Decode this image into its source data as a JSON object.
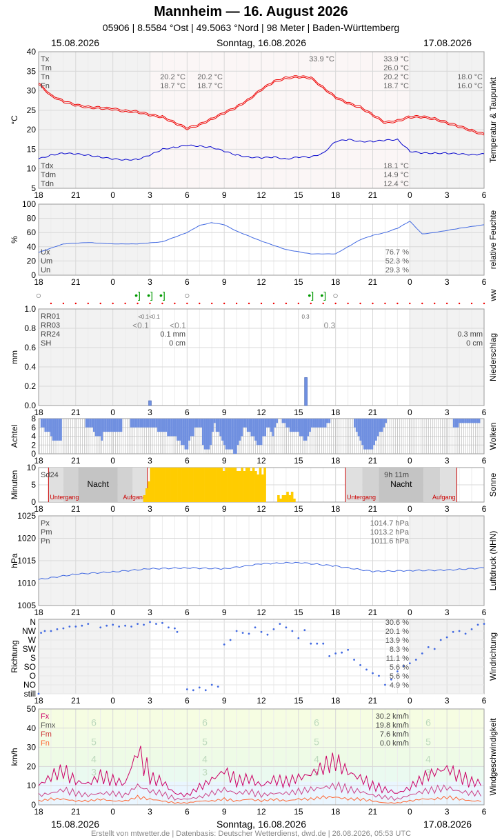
{
  "header": {
    "title": "Mannheim  —  16. August 2026",
    "station": "05906  |  8.5584 °Ost  |  49.5063 °Nord  |  98 Meter  |  Baden-Württemberg",
    "date_left": "15.08.2026",
    "date_center": "Sonntag, 16.08.2026",
    "date_right": "17.08.2026"
  },
  "footer": "Erstellt von mtwetter.de | Datenbasis: Deutscher Wetterdienst, dwd.de | 26.08.2026, 05:53 UTC",
  "x_ticks": [
    "18",
    "21",
    "0",
    "3",
    "6",
    "9",
    "12",
    "15",
    "18",
    "21",
    "0",
    "3",
    "6"
  ],
  "colors": {
    "temp": "#ee0000",
    "dew": "#0000cc",
    "blue": "#4169e1",
    "bar": "#6f8fe0",
    "sun": "#ffcc00",
    "wind_fx": "#cc0066",
    "wind_fm": "#ff6633"
  },
  "chart_data": [
    {
      "id": "temp",
      "type": "line",
      "ylabel": "°C",
      "right_label": "Temperatur & Taupunkt",
      "ylim": [
        5,
        40
      ],
      "yticks": [
        "5",
        "10",
        "15",
        "20",
        "25",
        "30",
        "35",
        "40"
      ],
      "hours": [
        0,
        1,
        2,
        3,
        4,
        5,
        6,
        7,
        8,
        9,
        10,
        11,
        12,
        13,
        14,
        15,
        16,
        17,
        18,
        19,
        20,
        21,
        22,
        23,
        24,
        25,
        26,
        27,
        28,
        29,
        30,
        31,
        32,
        33,
        34,
        35,
        36
      ],
      "series": [
        {
          "name": "Temperatur",
          "values": [
            32.0,
            29.0,
            27.5,
            26.5,
            26.0,
            25.8,
            25.5,
            25.0,
            24.8,
            24.0,
            23.5,
            22.0,
            20.5,
            21.5,
            23.0,
            24.5,
            26.0,
            28.0,
            30.5,
            32.5,
            33.5,
            33.8,
            33.5,
            31.0,
            28.5,
            27.0,
            26.0,
            24.0,
            22.0,
            22.5,
            23.5,
            23.5,
            23.0,
            22.0,
            21.0,
            20.0,
            19.0
          ]
        },
        {
          "name": "Taupunkt",
          "values": [
            12.5,
            13.5,
            14.0,
            13.8,
            13.5,
            13.0,
            12.5,
            12.3,
            12.4,
            13.5,
            15.0,
            15.5,
            16.0,
            15.8,
            15.5,
            14.5,
            13.5,
            13.0,
            12.8,
            13.0,
            12.5,
            13.0,
            13.0,
            14.0,
            17.0,
            17.5,
            17.0,
            17.0,
            17.3,
            17.5,
            14.5,
            14.0,
            14.0,
            14.0,
            13.8,
            13.6,
            13.8
          ]
        }
      ],
      "labels_left": [
        "Tx",
        "Tm",
        "Tn",
        "Fn"
      ],
      "labels_left_bottom": [
        "Tdx",
        "Tdm",
        "Tdn"
      ],
      "mid_values": [
        [
          "20.2 °C",
          "18.7 °C"
        ],
        [
          "20.2 °C",
          "18.7 °C"
        ]
      ],
      "peak_label": "33.9 °C",
      "right_values": [
        "33.9 °C",
        "26.0 °C",
        "20.2 °C",
        "18.7 °C"
      ],
      "right_values_bottom": [
        "18.1 °C",
        "14.9 °C",
        "12.4 °C"
      ],
      "far_right_values": [
        "18.0 °C",
        "16.0 °C"
      ]
    },
    {
      "id": "humidity",
      "type": "line",
      "ylabel": "%",
      "right_label": "relative Feuchte",
      "ylim": [
        0,
        100
      ],
      "yticks": [
        "0",
        "20",
        "40",
        "60",
        "80",
        "100"
      ],
      "hours": [
        0,
        2,
        4,
        6,
        8,
        10,
        12,
        13,
        14,
        15,
        16,
        18,
        20,
        22,
        24,
        25,
        26,
        27,
        28,
        29,
        30,
        31,
        32,
        34,
        36
      ],
      "values": [
        32,
        44,
        46,
        44,
        44,
        47,
        60,
        70,
        74,
        71,
        62,
        48,
        36,
        30,
        30,
        40,
        50,
        56,
        60,
        66,
        76,
        58,
        60,
        66,
        71
      ],
      "labels_left": [
        "Ux",
        "Um",
        "Un"
      ],
      "right_values": [
        "76.7 %",
        "52.3 %",
        "29.3 %"
      ]
    },
    {
      "id": "ww",
      "type": "table",
      "right_label": "ww",
      "symbols_hours": [
        0,
        8,
        9,
        10,
        12,
        22,
        23,
        24
      ],
      "symbols": [
        "○",
        "•]",
        "•]",
        "•]",
        "○",
        "•]",
        "•]",
        "○"
      ]
    },
    {
      "id": "precip",
      "type": "bar",
      "ylabel": "mm",
      "right_label": "Niederschlag",
      "ylim": [
        0,
        1.0
      ],
      "yticks": [
        "0.0",
        "0.2",
        "0.4",
        "0.6",
        "0.8",
        "1.0"
      ],
      "bar_hours": [
        9.0,
        21.6
      ],
      "bar_values": [
        0.05,
        0.29
      ],
      "labels_left": [
        "RR01",
        "RR03",
        "RR24",
        "SH"
      ],
      "small_labels": [
        "<0.1<0.1",
        "<0.1",
        "<0.1",
        "0.3",
        "0.3"
      ],
      "right_values_mid": [
        "0.1 mm",
        "0 cm"
      ],
      "right_values": [
        "0.3 mm",
        "0 cm"
      ]
    },
    {
      "id": "clouds",
      "type": "bar",
      "ylabel": "Achtel",
      "right_label": "Wolken",
      "ylim": [
        0,
        8
      ],
      "yticks": [
        "0",
        "2",
        "4",
        "6",
        "8"
      ],
      "values": [
        8,
        6,
        6,
        5,
        5,
        5,
        4,
        3,
        3,
        3,
        3,
        3,
        8,
        8,
        8,
        8,
        8,
        8,
        8,
        8,
        8,
        8,
        8,
        8,
        6,
        6,
        6,
        6,
        5,
        4,
        4,
        4,
        3,
        5,
        5,
        5,
        5,
        5,
        5,
        5,
        5,
        5,
        5,
        8,
        8,
        8,
        8,
        6,
        6,
        6,
        6,
        6,
        6,
        6,
        6,
        6,
        6,
        6,
        6,
        6,
        6,
        5,
        5,
        5,
        5,
        5,
        4,
        4,
        4,
        4,
        4,
        3,
        3,
        2,
        2,
        1,
        1,
        3,
        4,
        4,
        6,
        6,
        6,
        6,
        2,
        1,
        1,
        1,
        2,
        5,
        7,
        5,
        5,
        4,
        3,
        2,
        1,
        1,
        1,
        1,
        0,
        0,
        2,
        3,
        4,
        6,
        6,
        5,
        5,
        4,
        4,
        3,
        2,
        2,
        2,
        4,
        4,
        6,
        6,
        5,
        4,
        6,
        7,
        8,
        8,
        7,
        7,
        6,
        6,
        5,
        5,
        5,
        5,
        5,
        4,
        4,
        3,
        3,
        4,
        5,
        6,
        6,
        6,
        6,
        6,
        6,
        6,
        6,
        7,
        7,
        8,
        8,
        8,
        8,
        8,
        8,
        8,
        8,
        8,
        8,
        8,
        8,
        6,
        5,
        4,
        3,
        2,
        1,
        1,
        1,
        1,
        1,
        2,
        3,
        4,
        5,
        5,
        6,
        7,
        8,
        8,
        8,
        8,
        8,
        8,
        8,
        8,
        8,
        8,
        8,
        8,
        8,
        8,
        8,
        8,
        8,
        8,
        8,
        8,
        8,
        8,
        8,
        8,
        8,
        8,
        8,
        8,
        8,
        8,
        8,
        8,
        8,
        8,
        6,
        6,
        6,
        7,
        7,
        7,
        7,
        7,
        7,
        7,
        7,
        7,
        7,
        7,
        8,
        8
      ]
    },
    {
      "id": "sun",
      "type": "bar",
      "ylabel": "Minuten",
      "right_label": "Sonne",
      "ylim": [
        0,
        10
      ],
      "yticks": [
        "0",
        "5",
        "10"
      ],
      "labels_left": [
        "Sd24"
      ],
      "sun_total": "9h 11m",
      "night_label": "Nacht",
      "sunset_label": "Untergang",
      "sunrise_label": "Aufgang",
      "values": [
        0,
        0,
        0,
        0,
        0,
        0,
        0,
        0,
        0,
        0,
        0,
        0,
        0,
        0,
        0,
        0,
        0,
        0,
        0,
        0,
        0,
        0,
        0,
        0,
        0,
        0,
        0,
        0,
        0,
        0,
        0,
        0,
        0,
        0,
        0,
        0,
        0,
        0,
        0,
        0,
        0,
        0,
        0,
        0,
        0,
        0,
        2,
        4,
        6,
        10,
        10,
        10,
        10,
        10,
        10,
        10,
        10,
        10,
        10,
        10,
        10,
        10,
        10,
        10,
        10,
        10,
        10,
        10,
        10,
        10,
        10,
        10,
        10,
        10,
        10,
        10,
        10,
        10,
        10,
        10,
        10,
        9,
        10,
        10,
        10,
        10,
        10,
        9,
        9,
        10,
        9,
        10,
        10,
        9,
        10,
        9,
        8,
        10,
        8,
        10,
        0,
        0,
        0,
        0,
        0,
        2,
        1,
        2,
        2,
        3,
        2,
        3,
        1,
        0,
        0,
        0,
        0,
        0,
        0,
        0,
        0,
        0,
        0,
        0,
        0,
        0,
        0,
        0,
        0,
        0,
        0,
        0,
        0,
        0,
        0,
        0,
        0,
        0,
        0,
        0,
        0,
        0,
        0,
        0,
        0,
        0,
        0,
        0,
        0,
        0,
        0,
        0,
        0,
        0,
        0,
        0,
        0,
        0,
        0,
        0,
        0,
        0,
        0,
        0,
        0,
        0,
        0,
        0,
        0,
        0,
        0,
        0,
        0,
        0,
        0,
        0,
        0,
        0,
        0,
        0,
        0,
        0,
        0,
        0,
        0,
        0,
        0,
        0,
        0,
        0,
        0,
        0,
        0,
        0,
        0,
        0
      ]
    },
    {
      "id": "pressure",
      "type": "line",
      "ylabel": "hPa",
      "right_label": "Luftdruck (NHN)",
      "ylim": [
        1005,
        1025
      ],
      "yticks": [
        "1005",
        "1010",
        "1015",
        "1020",
        "1025"
      ],
      "hours": [
        0,
        3,
        6,
        9,
        12,
        15,
        18,
        21,
        24,
        27,
        30,
        33,
        36
      ],
      "values": [
        1010.8,
        1012.0,
        1012.5,
        1013.2,
        1013.4,
        1013.2,
        1014.3,
        1014.6,
        1013.8,
        1012.6,
        1012.8,
        1012.9,
        1013.4
      ],
      "labels_left": [
        "Px",
        "Pm",
        "Pn"
      ],
      "right_values": [
        "1014.7 hPa",
        "1013.2 hPa",
        "1011.6 hPa"
      ]
    },
    {
      "id": "wind_dir",
      "type": "scatter",
      "ylabel": "Richtung",
      "right_label": "Windrichtung",
      "categories": [
        "N",
        "NW",
        "W",
        "SW",
        "S",
        "SO",
        "O",
        "NO",
        "still"
      ],
      "percents": [
        "30.6 %",
        "20.1 %",
        "13.9 %",
        "8.3 %",
        "11.1 %",
        "5.6 %",
        "5.6 %",
        "4.9 %"
      ],
      "points": [
        [
          0.0,
          8
        ],
        [
          0.2,
          1.2
        ],
        [
          0.5,
          1.0
        ],
        [
          1,
          1
        ],
        [
          1.5,
          0.8
        ],
        [
          2,
          0.7
        ],
        [
          2.5,
          0.5
        ],
        [
          3,
          0.5
        ],
        [
          3.5,
          0.4
        ],
        [
          4,
          0.2
        ],
        [
          5,
          0.6
        ],
        [
          5.5,
          0.4
        ],
        [
          6,
          0.3
        ],
        [
          6.5,
          0.5
        ],
        [
          7,
          0.4
        ],
        [
          7.5,
          0.5
        ],
        [
          8,
          0.2
        ],
        [
          8.5,
          0.3
        ],
        [
          9,
          0.0
        ],
        [
          9.5,
          0.2
        ],
        [
          10,
          0.1
        ],
        [
          10.5,
          0.6
        ],
        [
          11,
          0.7
        ],
        [
          11.2,
          1.1
        ],
        [
          12,
          7.5
        ],
        [
          12.5,
          7.6
        ],
        [
          13,
          7.3
        ],
        [
          13.5,
          7.6
        ],
        [
          14,
          7.0
        ],
        [
          14.5,
          7.2
        ],
        [
          15,
          2.5
        ],
        [
          15.5,
          2.0
        ],
        [
          16,
          1.0
        ],
        [
          16.5,
          1.2
        ],
        [
          17,
          1.3
        ],
        [
          17.5,
          0.6
        ],
        [
          18,
          1.1
        ],
        [
          18.5,
          1.4
        ],
        [
          19,
          0.8
        ],
        [
          19.5,
          0.2
        ],
        [
          20,
          0.6
        ],
        [
          20.5,
          1.0
        ],
        [
          21,
          1.8
        ],
        [
          21.5,
          0.9
        ],
        [
          22,
          2.4
        ],
        [
          22.5,
          2.4
        ],
        [
          23,
          2.4
        ],
        [
          23.5,
          3.8
        ],
        [
          24,
          3.5
        ],
        [
          24.5,
          3.4
        ],
        [
          25,
          3.1
        ],
        [
          25.5,
          4.2
        ],
        [
          26,
          4.8
        ],
        [
          26.5,
          5.3
        ],
        [
          27,
          5.7
        ],
        [
          27.5,
          6.0
        ],
        [
          28,
          7.0
        ],
        [
          28.5,
          6.4
        ],
        [
          29,
          5.5
        ],
        [
          29.5,
          4.9
        ],
        [
          30,
          4.6
        ],
        [
          30.5,
          4.2
        ],
        [
          31,
          3.5
        ],
        [
          31.5,
          2.8
        ],
        [
          32,
          3.0
        ],
        [
          32.5,
          2.0
        ],
        [
          33,
          1.7
        ],
        [
          33.5,
          1.1
        ],
        [
          34,
          1.0
        ],
        [
          34.5,
          1.3
        ],
        [
          35,
          0.8
        ],
        [
          35.5,
          0.3
        ],
        [
          36,
          0.2
        ]
      ]
    },
    {
      "id": "wind_speed",
      "type": "line",
      "ylabel": "km/h",
      "right_label": "Windgeschwindigkeit",
      "ylim": [
        0,
        50
      ],
      "yticks": [
        "0",
        "10",
        "20",
        "30",
        "40",
        "50"
      ],
      "hours": [
        0,
        1,
        2,
        3,
        4,
        5,
        6,
        7,
        8,
        9,
        10,
        11,
        12,
        13,
        14,
        15,
        16,
        17,
        18,
        19,
        20,
        21,
        22,
        23,
        24,
        25,
        26,
        27,
        28,
        29,
        30,
        31,
        32,
        33,
        34,
        35,
        36
      ],
      "series": [
        {
          "name": "Fx",
          "values": [
            10,
            15,
            18,
            12,
            11,
            15,
            13,
            11,
            29,
            14,
            12,
            6,
            5,
            9,
            13,
            18,
            12,
            14,
            10,
            13,
            12,
            14,
            16,
            20,
            23,
            17,
            14,
            10,
            8,
            6,
            9,
            14,
            17,
            19,
            15,
            12,
            11
          ]
        },
        {
          "name": "Fm",
          "values": [
            5,
            6,
            8,
            6,
            5,
            6,
            6,
            5,
            10,
            7,
            6,
            3,
            3,
            4,
            6,
            8,
            6,
            7,
            5,
            6,
            6,
            7,
            8,
            9,
            10,
            8,
            7,
            5,
            4,
            3,
            5,
            7,
            8,
            9,
            7,
            6,
            6
          ]
        },
        {
          "name": "Fn",
          "values": [
            2,
            3,
            3,
            2,
            2,
            3,
            2,
            2,
            4,
            3,
            2,
            1,
            1,
            2,
            2,
            3,
            2,
            3,
            2,
            3,
            2,
            3,
            3,
            4,
            4,
            3,
            3,
            2,
            1,
            1,
            2,
            3,
            3,
            4,
            3,
            2,
            2
          ]
        }
      ],
      "labels_left": [
        "Fx",
        "Fmx",
        "Fm",
        "Fn"
      ],
      "right_values": [
        "30.2 km/h",
        "19.8 km/h",
        "7.6 km/h",
        "0.0 km/h"
      ],
      "beaufort": [
        "6",
        "5",
        "4",
        "3",
        "6",
        "5",
        "4",
        "3",
        "6",
        "5",
        "4",
        "3",
        "6",
        "5",
        "4",
        "3"
      ]
    }
  ]
}
